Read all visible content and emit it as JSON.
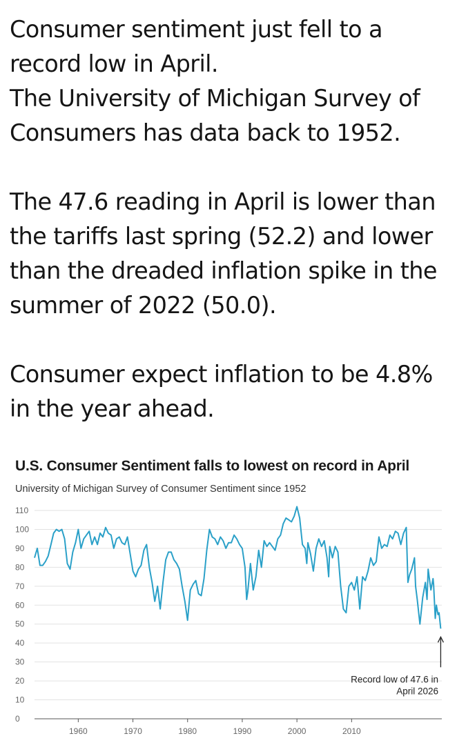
{
  "post": {
    "paragraphs": [
      [
        "Consumer sentiment just fell to a",
        "record low in April.",
        "The University of Michigan Survey of",
        "Consumers has data back to 1952."
      ],
      [
        "The 47.6 reading in April is lower than",
        "the tariffs last spring (52.2) and lower",
        "than the dreaded inflation spike in the",
        "summer of 2022 (50.0)."
      ],
      [
        "Consumer expect inflation to be 4.8%",
        "in the year ahead."
      ]
    ]
  },
  "chart_data": {
    "type": "line",
    "title": "U.S. Consumer Sentiment falls to lowest on record in April",
    "subtitle": "University of Michigan Survey of Consumer Sentiment since 1952",
    "xlabel": "",
    "ylabel": "",
    "xlim": [
      1952,
      2026.5
    ],
    "ylim": [
      0,
      110
    ],
    "yticks": [
      0,
      10,
      20,
      30,
      40,
      50,
      60,
      70,
      80,
      90,
      100,
      110
    ],
    "xticks": [
      1960,
      1970,
      1980,
      1990,
      2000,
      2010
    ],
    "grid": "horizontal",
    "line_color": "#2aa0c8",
    "series": [
      {
        "name": "",
        "points": [
          [
            1952.0,
            85
          ],
          [
            1952.5,
            90
          ],
          [
            1953.0,
            81
          ],
          [
            1953.5,
            81
          ],
          [
            1954.0,
            83
          ],
          [
            1954.5,
            86
          ],
          [
            1955.0,
            92
          ],
          [
            1955.5,
            98
          ],
          [
            1956.0,
            100
          ],
          [
            1956.5,
            99
          ],
          [
            1957.0,
            100
          ],
          [
            1957.5,
            95
          ],
          [
            1958.0,
            82
          ],
          [
            1958.5,
            79
          ],
          [
            1959.0,
            88
          ],
          [
            1959.5,
            93
          ],
          [
            1960.0,
            100
          ],
          [
            1960.5,
            90
          ],
          [
            1961.0,
            95
          ],
          [
            1961.5,
            97
          ],
          [
            1962.0,
            99
          ],
          [
            1962.5,
            92
          ],
          [
            1963.0,
            96
          ],
          [
            1963.5,
            92
          ],
          [
            1964.0,
            98
          ],
          [
            1964.5,
            96
          ],
          [
            1965.0,
            101
          ],
          [
            1965.5,
            98
          ],
          [
            1966.0,
            97
          ],
          [
            1966.5,
            90
          ],
          [
            1967.0,
            95
          ],
          [
            1967.5,
            96
          ],
          [
            1968.0,
            93
          ],
          [
            1968.5,
            92
          ],
          [
            1969.0,
            96
          ],
          [
            1969.5,
            87
          ],
          [
            1970.0,
            78
          ],
          [
            1970.5,
            75
          ],
          [
            1971.0,
            79
          ],
          [
            1971.5,
            81
          ],
          [
            1972.0,
            89
          ],
          [
            1972.5,
            92
          ],
          [
            1973.0,
            80
          ],
          [
            1973.5,
            72
          ],
          [
            1974.0,
            62
          ],
          [
            1974.5,
            70
          ],
          [
            1975.0,
            58
          ],
          [
            1975.5,
            72
          ],
          [
            1976.0,
            84
          ],
          [
            1976.5,
            88
          ],
          [
            1977.0,
            88
          ],
          [
            1977.5,
            84
          ],
          [
            1978.0,
            82
          ],
          [
            1978.5,
            79
          ],
          [
            1979.0,
            70
          ],
          [
            1979.5,
            62
          ],
          [
            1980.0,
            52
          ],
          [
            1980.5,
            68
          ],
          [
            1981.0,
            71
          ],
          [
            1981.5,
            73
          ],
          [
            1982.0,
            66
          ],
          [
            1982.5,
            65
          ],
          [
            1983.0,
            74
          ],
          [
            1983.5,
            89
          ],
          [
            1984.0,
            100
          ],
          [
            1984.5,
            96
          ],
          [
            1985.0,
            95
          ],
          [
            1985.5,
            92
          ],
          [
            1986.0,
            96
          ],
          [
            1986.5,
            94
          ],
          [
            1987.0,
            90
          ],
          [
            1987.5,
            93
          ],
          [
            1988.0,
            93
          ],
          [
            1988.5,
            97
          ],
          [
            1989.0,
            95
          ],
          [
            1989.5,
            92
          ],
          [
            1990.0,
            90
          ],
          [
            1990.5,
            80
          ],
          [
            1990.8,
            63
          ],
          [
            1991.0,
            67
          ],
          [
            1991.5,
            82
          ],
          [
            1992.0,
            68
          ],
          [
            1992.5,
            75
          ],
          [
            1993.0,
            89
          ],
          [
            1993.5,
            80
          ],
          [
            1994.0,
            94
          ],
          [
            1994.5,
            91
          ],
          [
            1995.0,
            93
          ],
          [
            1995.5,
            91
          ],
          [
            1996.0,
            89
          ],
          [
            1996.5,
            95
          ],
          [
            1997.0,
            97
          ],
          [
            1997.5,
            103
          ],
          [
            1998.0,
            106
          ],
          [
            1998.5,
            105
          ],
          [
            1999.0,
            104
          ],
          [
            1999.5,
            107
          ],
          [
            2000.0,
            112
          ],
          [
            2000.5,
            106
          ],
          [
            2001.0,
            92
          ],
          [
            2001.5,
            90
          ],
          [
            2001.8,
            82
          ],
          [
            2002.0,
            93
          ],
          [
            2002.5,
            87
          ],
          [
            2003.0,
            78
          ],
          [
            2003.5,
            90
          ],
          [
            2004.0,
            95
          ],
          [
            2004.5,
            91
          ],
          [
            2005.0,
            94
          ],
          [
            2005.5,
            85
          ],
          [
            2005.8,
            75
          ],
          [
            2006.0,
            91
          ],
          [
            2006.5,
            85
          ],
          [
            2007.0,
            91
          ],
          [
            2007.5,
            88
          ],
          [
            2008.0,
            70
          ],
          [
            2008.5,
            58
          ],
          [
            2009.0,
            56
          ],
          [
            2009.5,
            70
          ],
          [
            2010.0,
            72
          ],
          [
            2010.5,
            68
          ],
          [
            2011.0,
            75
          ],
          [
            2011.5,
            58
          ],
          [
            2012.0,
            75
          ],
          [
            2012.5,
            73
          ],
          [
            2013.0,
            78
          ],
          [
            2013.5,
            85
          ],
          [
            2014.0,
            81
          ],
          [
            2014.5,
            83
          ],
          [
            2015.0,
            96
          ],
          [
            2015.5,
            90
          ],
          [
            2016.0,
            92
          ],
          [
            2016.5,
            91
          ],
          [
            2017.0,
            97
          ],
          [
            2017.5,
            95
          ],
          [
            2018.0,
            99
          ],
          [
            2018.5,
            98
          ],
          [
            2019.0,
            92
          ],
          [
            2019.5,
            98
          ],
          [
            2020.0,
            101
          ],
          [
            2020.3,
            72
          ],
          [
            2020.6,
            76
          ],
          [
            2021.0,
            79
          ],
          [
            2021.5,
            85
          ],
          [
            2021.7,
            70
          ],
          [
            2022.0,
            63
          ],
          [
            2022.5,
            50
          ],
          [
            2023.0,
            64
          ],
          [
            2023.5,
            72
          ],
          [
            2023.8,
            63
          ],
          [
            2024.0,
            79
          ],
          [
            2024.5,
            68
          ],
          [
            2024.9,
            74
          ],
          [
            2025.0,
            71
          ],
          [
            2025.3,
            53
          ],
          [
            2025.5,
            60
          ],
          [
            2025.8,
            55
          ],
          [
            2026.0,
            56
          ],
          [
            2026.3,
            47.6
          ]
        ]
      }
    ],
    "annotations": [
      {
        "text_lines": [
          "Record low of 47.6 in",
          "April 2026"
        ],
        "x": 2026.3,
        "y": 47.6,
        "arrow": "up"
      }
    ]
  }
}
